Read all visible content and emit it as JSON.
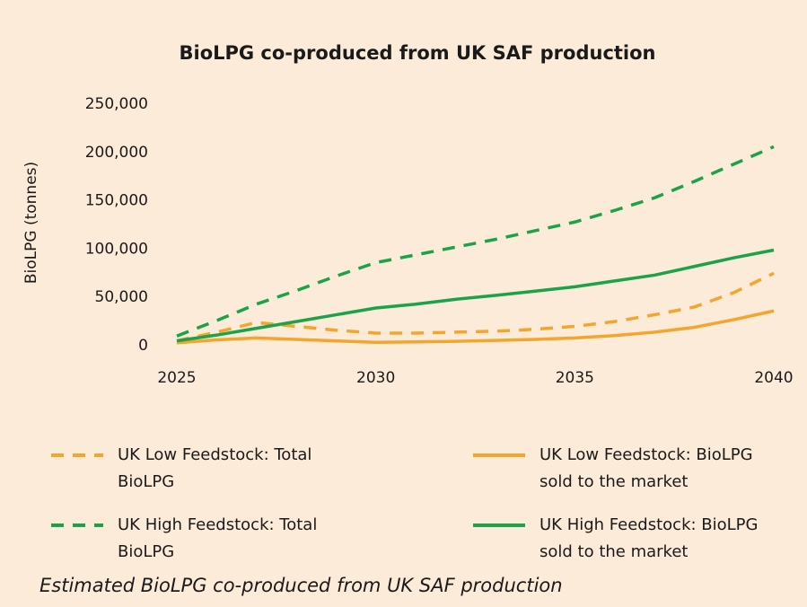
{
  "chart_data": {
    "type": "line",
    "title": "BioLPG co-produced from UK SAF production",
    "ylabel": "BioLPG (tonnes)",
    "caption": "Estimated BioLPG co-produced from UK SAF production",
    "x": [
      2025,
      2026,
      2027,
      2028,
      2029,
      2030,
      2031,
      2032,
      2033,
      2034,
      2035,
      2036,
      2037,
      2038,
      2039,
      2040
    ],
    "xlim": [
      2025,
      2040
    ],
    "xticks": [
      2025,
      2030,
      2035,
      2040
    ],
    "ylim": [
      0,
      250000
    ],
    "yticks": [
      0,
      {
        "value": 50000,
        "label": "50,000"
      },
      {
        "value": 100000,
        "label": "100,000"
      },
      {
        "value": 150000,
        "label": "150,000"
      },
      {
        "value": 200000,
        "label": "200,000"
      },
      {
        "value": 250000,
        "label": "250,000"
      }
    ],
    "grid": false,
    "series": [
      {
        "name": "UK Low Feedstock: Total BioLPG",
        "color": "#f4a52c",
        "style": "dashed",
        "values": [
          5000,
          14000,
          24000,
          20000,
          16000,
          13000,
          13000,
          14000,
          15000,
          17000,
          20000,
          25000,
          32000,
          40000,
          55000,
          75000
        ]
      },
      {
        "name": "UK Low Feedstock: BioLPG sold to the market",
        "color": "#f4a52c",
        "style": "solid",
        "values": [
          3000,
          6000,
          8000,
          6500,
          5000,
          3500,
          4000,
          4500,
          5500,
          6500,
          8000,
          10500,
          14000,
          19000,
          27000,
          36000
        ]
      },
      {
        "name": "UK High Feedstock: Total BioLPG",
        "color": "#1ba34a",
        "style": "dashed",
        "values": [
          10000,
          26000,
          43000,
          57000,
          72000,
          86000,
          94000,
          102000,
          110000,
          119000,
          128000,
          140000,
          153000,
          170000,
          188000,
          206000
        ]
      },
      {
        "name": "UK High Feedstock: BioLPG sold to the market",
        "color": "#1ba34a",
        "style": "solid",
        "values": [
          5000,
          11000,
          18000,
          25000,
          32000,
          39000,
          43000,
          48000,
          52000,
          56500,
          61000,
          67000,
          73000,
          82000,
          91000,
          99000
        ]
      }
    ]
  }
}
